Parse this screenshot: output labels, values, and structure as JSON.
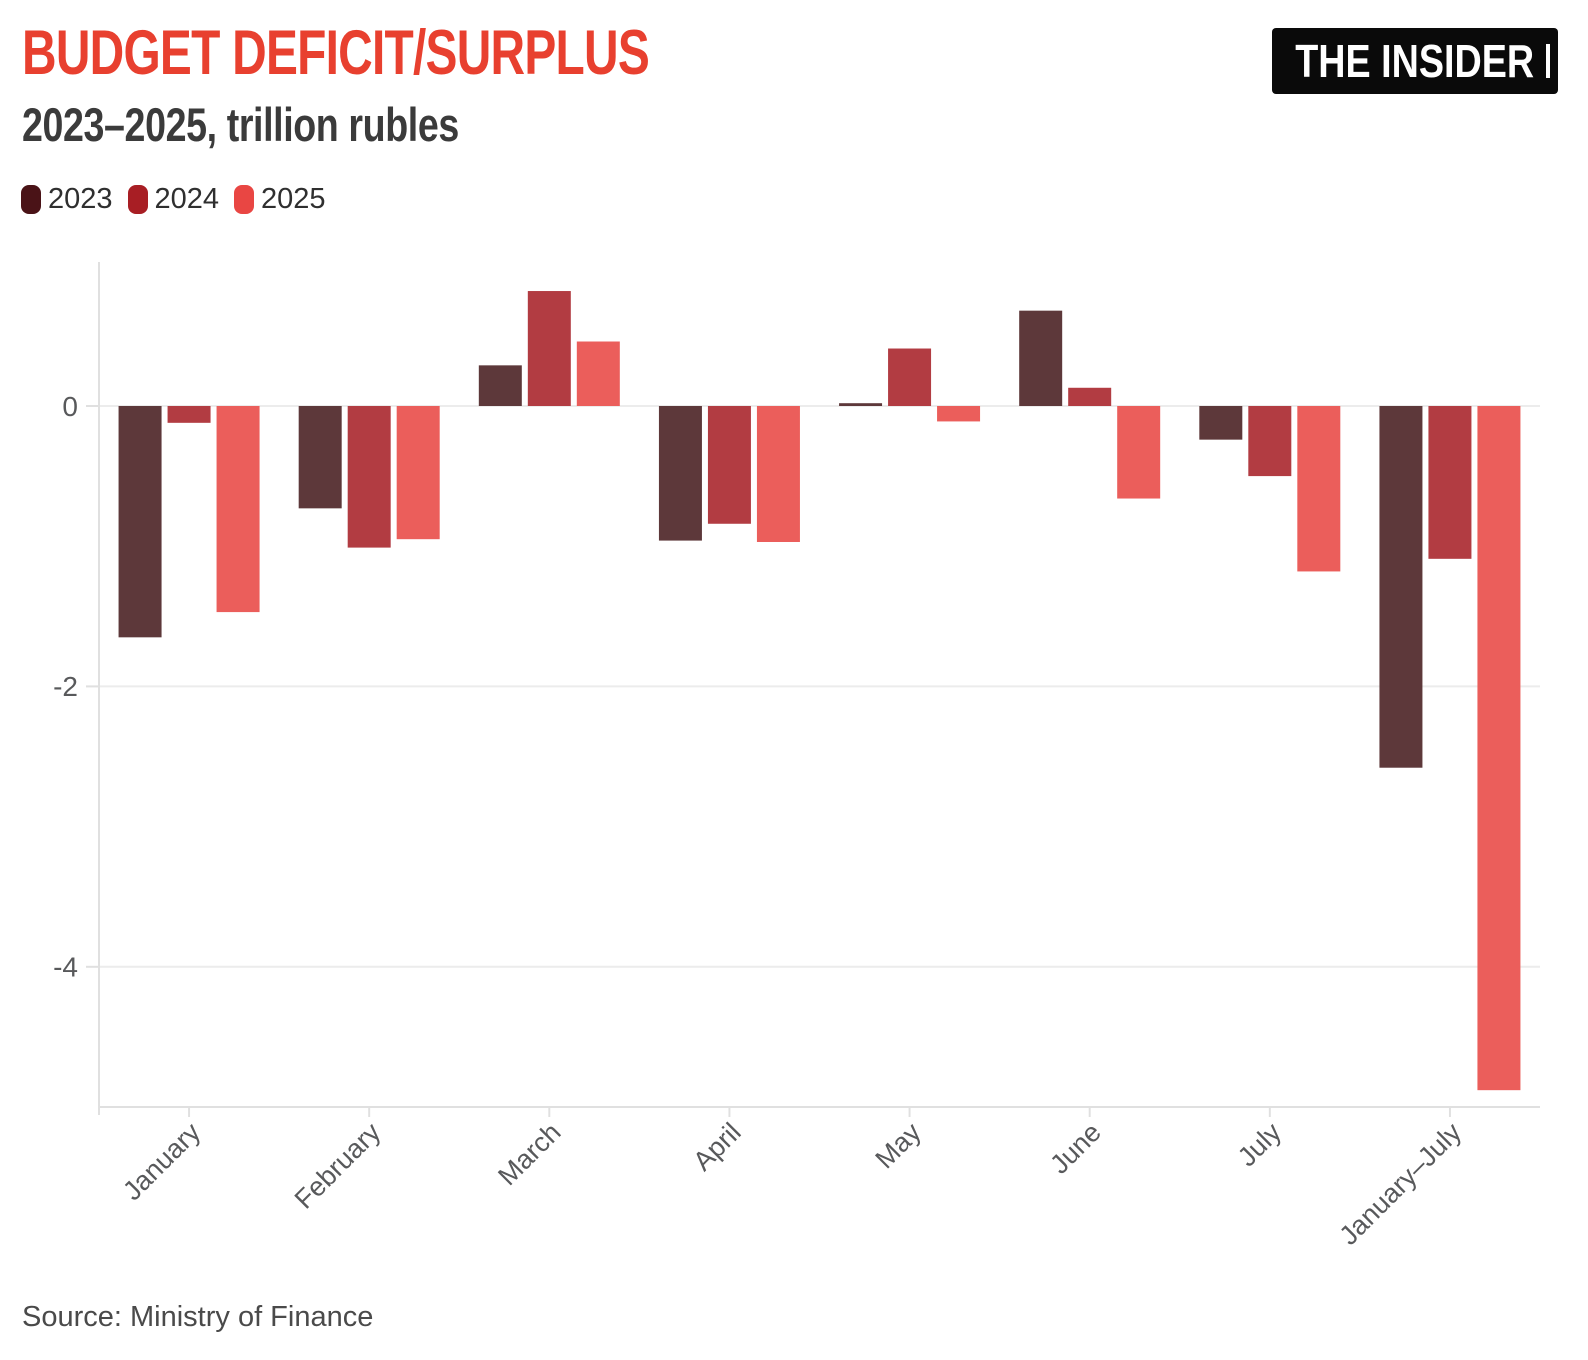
{
  "header": {
    "logo_text": "THE INSIDER"
  },
  "chart_data": {
    "type": "bar",
    "title": "BUDGET DEFICIT/SURPLUS",
    "subtitle": "2023–2025, trillion rubles",
    "xlabel": "",
    "ylabel": "trillion rubles",
    "categories": [
      "January",
      "February",
      "March",
      "April",
      "May",
      "June",
      "July",
      "January–July"
    ],
    "series": [
      {
        "name": "2023",
        "legend_color": "#4A1317",
        "bar_color": "#5D383A",
        "values": [
          -1.65,
          -0.73,
          0.29,
          -0.96,
          0.02,
          0.68,
          -0.24,
          -2.58
        ]
      },
      {
        "name": "2024",
        "legend_color": "#A81E24",
        "bar_color": "#B23C42",
        "values": [
          -0.12,
          -1.01,
          0.82,
          -0.84,
          0.41,
          0.13,
          -0.5,
          -1.09
        ]
      },
      {
        "name": "2025",
        "legend_color": "#E94643",
        "bar_color": "#EB5E5B",
        "values": [
          -1.47,
          -0.95,
          0.46,
          -0.97,
          -0.11,
          -0.66,
          -1.18,
          -4.88
        ]
      }
    ],
    "y_ticks": [
      0,
      -2,
      -4
    ],
    "ylim": [
      -5.0,
      1.05
    ],
    "grid": true,
    "legend_position": "top-left",
    "source": "Source: Ministry of Finance"
  },
  "colors": {
    "background": "#FFFFFF",
    "title": "#E8402F",
    "subtitle": "#3B3B3B",
    "legend_text": "#2F2F2F",
    "axis_text": "#58595B",
    "grid": "#ECECEC",
    "spine": "#E0E0E0",
    "source_text": "#4A4A4A",
    "logo_bg": "#0A0A0A",
    "logo_text": "#FFFFFF"
  }
}
